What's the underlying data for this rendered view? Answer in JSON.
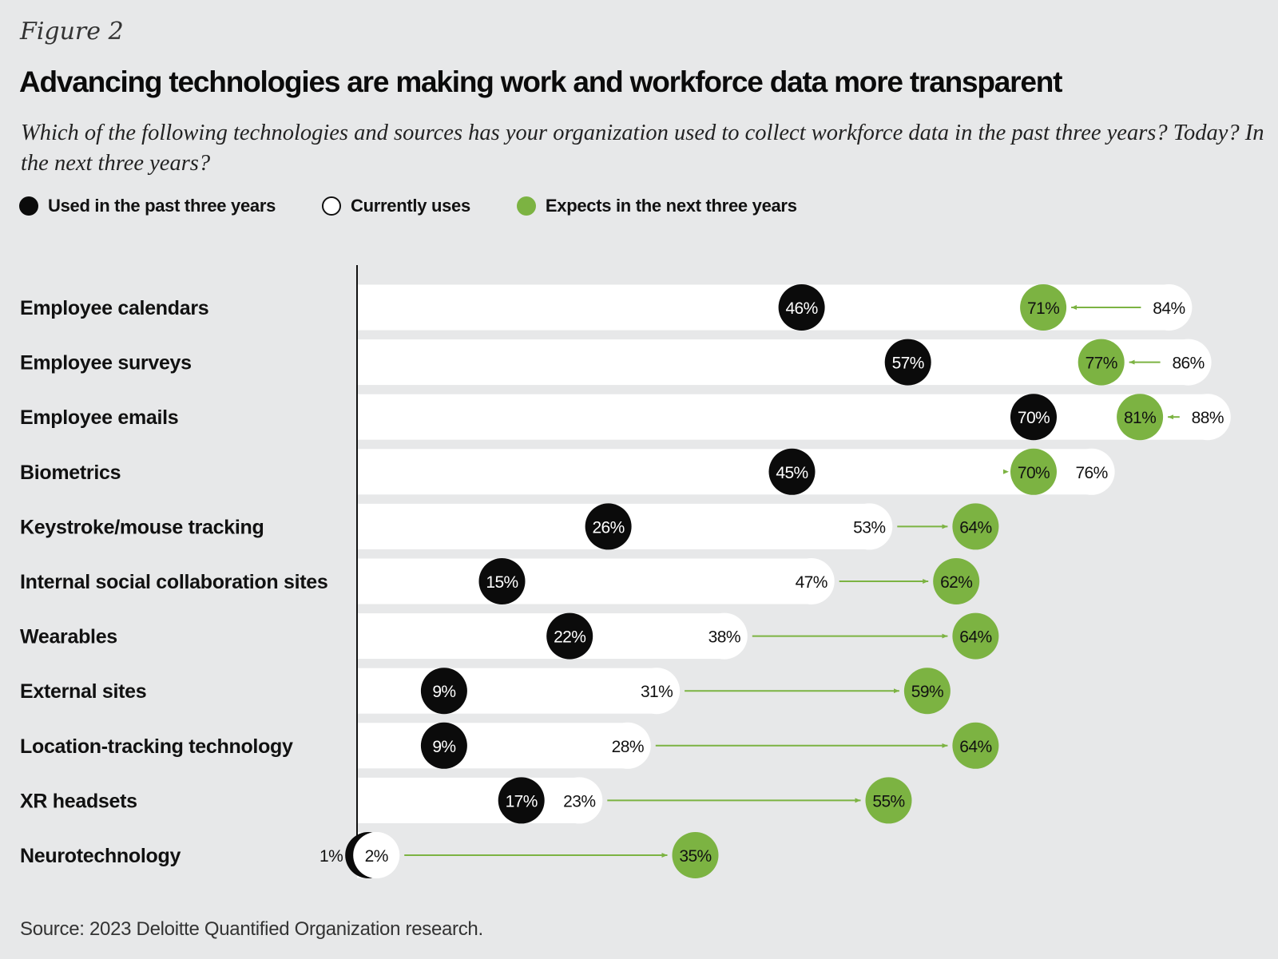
{
  "figure_label": "Figure 2",
  "chart_data": {
    "type": "dot-range",
    "title": "Advancing technologies are making work and workforce data more transparent",
    "subtitle": "Which of the following technologies and sources has your organization used to collect workforce data in the past three years? Today? In the next three years?",
    "unit": "%",
    "x_range": [
      0,
      100
    ],
    "legend_position": "top-left",
    "series": [
      {
        "key": "past",
        "name": "Used in the past three years",
        "color": "#0b0b0b",
        "values": [
          46,
          57,
          70,
          45,
          26,
          15,
          22,
          9,
          9,
          17,
          1
        ]
      },
      {
        "key": "current",
        "name": "Currently uses",
        "color": "#ffffff",
        "values": [
          84,
          86,
          88,
          76,
          53,
          47,
          38,
          31,
          28,
          23,
          2
        ]
      },
      {
        "key": "future",
        "name": "Expects in the next three years",
        "color": "#7cb342",
        "values": [
          71,
          77,
          81,
          70,
          64,
          62,
          64,
          59,
          64,
          55,
          35
        ]
      }
    ],
    "categories": [
      "Employee calendars",
      "Employee surveys",
      "Employee emails",
      "Biometrics",
      "Keystroke/mouse tracking",
      "Internal social collaboration sites",
      "Wearables",
      "External sites",
      "Location-tracking technology",
      "XR headsets",
      "Neurotechnology"
    ],
    "value_labels": {
      "past": [
        "46%",
        "57%",
        "70%",
        "45%",
        "26%",
        "15%",
        "22%",
        "9%",
        "9%",
        "17%",
        "1%"
      ],
      "current": [
        "84%",
        "86%",
        "88%",
        "76%",
        "53%",
        "47%",
        "38%",
        "31%",
        "28%",
        "23%",
        "2%"
      ],
      "future": [
        "71%",
        "77%",
        "81%",
        "70%",
        "64%",
        "62%",
        "64%",
        "59%",
        "64%",
        "55%",
        "35%"
      ]
    }
  },
  "source": "Source: 2023 Deloitte Quantified Organization research."
}
